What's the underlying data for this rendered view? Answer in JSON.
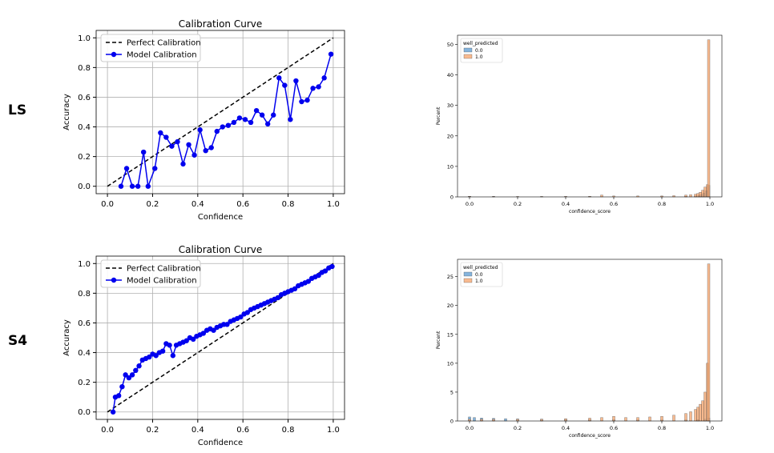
{
  "row_labels": [
    "LS",
    "S4"
  ],
  "chart_data": [
    {
      "type": "line",
      "title": "Calibration Curve",
      "xlabel": "Confidence",
      "ylabel": "Accuracy",
      "xlim": [
        -0.05,
        1.05
      ],
      "ylim": [
        -0.05,
        1.05
      ],
      "xticks": [
        0.0,
        0.2,
        0.4,
        0.6,
        0.8,
        1.0
      ],
      "yticks": [
        0.0,
        0.2,
        0.4,
        0.6,
        0.8,
        1.0
      ],
      "xtick_labels": [
        "0.0",
        "0.2",
        "0.4",
        "0.6",
        "0.8",
        "1.0"
      ],
      "ytick_labels": [
        "0.0",
        "0.2",
        "0.4",
        "0.6",
        "0.8",
        "1.0"
      ],
      "grid": true,
      "legend_position": "top-left",
      "series": [
        {
          "name": "Perfect Calibration",
          "style": "dashed",
          "color": "#000000",
          "x": [
            0,
            1
          ],
          "y": [
            0,
            1
          ]
        },
        {
          "name": "Model Calibration",
          "style": "line-marker",
          "color": "#0000ee",
          "x": [
            0.06,
            0.085,
            0.11,
            0.135,
            0.16,
            0.18,
            0.21,
            0.235,
            0.26,
            0.285,
            0.31,
            0.335,
            0.36,
            0.385,
            0.41,
            0.435,
            0.46,
            0.485,
            0.51,
            0.535,
            0.56,
            0.585,
            0.61,
            0.635,
            0.66,
            0.685,
            0.71,
            0.735,
            0.76,
            0.785,
            0.81,
            0.835,
            0.86,
            0.885,
            0.91,
            0.935,
            0.96,
            0.99
          ],
          "y": [
            0.0,
            0.12,
            0.0,
            0.0,
            0.23,
            0.0,
            0.12,
            0.36,
            0.33,
            0.27,
            0.3,
            0.15,
            0.28,
            0.21,
            0.38,
            0.24,
            0.26,
            0.37,
            0.4,
            0.41,
            0.43,
            0.46,
            0.45,
            0.43,
            0.51,
            0.48,
            0.42,
            0.48,
            0.73,
            0.68,
            0.45,
            0.71,
            0.57,
            0.58,
            0.66,
            0.67,
            0.73,
            0.89
          ]
        }
      ]
    },
    {
      "type": "bar",
      "title": "",
      "xlabel": "confidence_score",
      "ylabel": "Percent",
      "xlim": [
        -0.05,
        1.05
      ],
      "ylim": [
        0,
        53
      ],
      "xticks": [
        0.0,
        0.2,
        0.4,
        0.6,
        0.8,
        1.0
      ],
      "yticks": [
        0,
        10,
        20,
        30,
        40,
        50
      ],
      "xtick_labels": [
        "0.0",
        "0.2",
        "0.4",
        "0.6",
        "0.8",
        "1.0"
      ],
      "ytick_labels": [
        "0",
        "10",
        "20",
        "30",
        "40",
        "50"
      ],
      "grid": false,
      "legend_title": "well_predicted",
      "legend_position": "top-left",
      "series": [
        {
          "name": "0.0",
          "color": "#5b9ad0",
          "x": [
            0.0,
            0.1,
            0.3,
            0.5,
            0.8,
            0.9,
            0.94,
            0.955,
            0.965,
            0.975,
            0.985,
            0.995
          ],
          "y": [
            0.2,
            0.15,
            0.1,
            0.1,
            0.1,
            0.2,
            0.3,
            0.5,
            0.8,
            1.2,
            2.0,
            3.8
          ]
        },
        {
          "name": "1.0",
          "color": "#f5a36a",
          "x": [
            0.0,
            0.1,
            0.2,
            0.3,
            0.4,
            0.5,
            0.55,
            0.6,
            0.7,
            0.8,
            0.85,
            0.9,
            0.92,
            0.94,
            0.95,
            0.96,
            0.97,
            0.98,
            0.99,
            0.995
          ],
          "y": [
            0.2,
            0.15,
            0.15,
            0.15,
            0.2,
            0.2,
            0.6,
            0.3,
            0.3,
            0.3,
            0.4,
            0.6,
            0.7,
            0.9,
            1.1,
            1.5,
            2.2,
            3.2,
            4.0,
            51.5
          ]
        }
      ]
    },
    {
      "type": "line",
      "title": "Calibration Curve",
      "xlabel": "Confidence",
      "ylabel": "Accuracy",
      "xlim": [
        -0.05,
        1.05
      ],
      "ylim": [
        -0.05,
        1.05
      ],
      "xticks": [
        0.0,
        0.2,
        0.4,
        0.6,
        0.8,
        1.0
      ],
      "yticks": [
        0.0,
        0.2,
        0.4,
        0.6,
        0.8,
        1.0
      ],
      "xtick_labels": [
        "0.0",
        "0.2",
        "0.4",
        "0.6",
        "0.8",
        "1.0"
      ],
      "ytick_labels": [
        "0.0",
        "0.2",
        "0.4",
        "0.6",
        "0.8",
        "1.0"
      ],
      "grid": true,
      "legend_position": "top-left",
      "series": [
        {
          "name": "Perfect Calibration",
          "style": "dashed",
          "color": "#000000",
          "x": [
            0,
            1
          ],
          "y": [
            0,
            1
          ]
        },
        {
          "name": "Model Calibration",
          "style": "line-marker",
          "color": "#0000ee",
          "x": [
            0.025,
            0.035,
            0.05,
            0.065,
            0.08,
            0.095,
            0.11,
            0.125,
            0.14,
            0.155,
            0.17,
            0.185,
            0.2,
            0.215,
            0.23,
            0.245,
            0.26,
            0.275,
            0.29,
            0.305,
            0.32,
            0.335,
            0.35,
            0.365,
            0.38,
            0.395,
            0.41,
            0.425,
            0.44,
            0.455,
            0.47,
            0.485,
            0.5,
            0.515,
            0.53,
            0.545,
            0.56,
            0.575,
            0.59,
            0.605,
            0.62,
            0.635,
            0.65,
            0.665,
            0.68,
            0.695,
            0.71,
            0.725,
            0.74,
            0.755,
            0.77,
            0.785,
            0.8,
            0.815,
            0.83,
            0.845,
            0.86,
            0.875,
            0.89,
            0.905,
            0.92,
            0.935,
            0.95,
            0.965,
            0.98,
            0.995
          ],
          "y": [
            0.0,
            0.1,
            0.11,
            0.17,
            0.25,
            0.23,
            0.25,
            0.28,
            0.31,
            0.35,
            0.36,
            0.37,
            0.39,
            0.38,
            0.4,
            0.41,
            0.46,
            0.45,
            0.38,
            0.45,
            0.46,
            0.47,
            0.48,
            0.5,
            0.49,
            0.51,
            0.52,
            0.53,
            0.55,
            0.56,
            0.55,
            0.57,
            0.58,
            0.59,
            0.59,
            0.61,
            0.62,
            0.63,
            0.64,
            0.66,
            0.67,
            0.69,
            0.7,
            0.71,
            0.72,
            0.73,
            0.74,
            0.75,
            0.76,
            0.77,
            0.79,
            0.8,
            0.81,
            0.82,
            0.83,
            0.85,
            0.86,
            0.87,
            0.88,
            0.9,
            0.91,
            0.92,
            0.94,
            0.95,
            0.97,
            0.98
          ]
        }
      ]
    },
    {
      "type": "bar",
      "title": "",
      "xlabel": "confidence_score",
      "ylabel": "Percent",
      "xlim": [
        -0.05,
        1.05
      ],
      "ylim": [
        0,
        28
      ],
      "xticks": [
        0.0,
        0.2,
        0.4,
        0.6,
        0.8,
        1.0
      ],
      "yticks": [
        0,
        5,
        10,
        15,
        20,
        25
      ],
      "xtick_labels": [
        "0.0",
        "0.2",
        "0.4",
        "0.6",
        "0.8",
        "1.0"
      ],
      "ytick_labels": [
        "0",
        "5",
        "10",
        "15",
        "20",
        "25"
      ],
      "grid": false,
      "legend_title": "well_predicted",
      "legend_position": "top-left",
      "series": [
        {
          "name": "0.0",
          "color": "#5b9ad0",
          "x": [
            0.0,
            0.02,
            0.05,
            0.1,
            0.15,
            0.2,
            0.3,
            0.4,
            0.5,
            0.6,
            0.7,
            0.8,
            0.9,
            0.95,
            0.98,
            0.995
          ],
          "y": [
            0.7,
            0.6,
            0.5,
            0.45,
            0.4,
            0.35,
            0.3,
            0.3,
            0.25,
            0.25,
            0.2,
            0.2,
            0.2,
            0.25,
            0.3,
            0.5
          ]
        },
        {
          "name": "1.0",
          "color": "#f5a36a",
          "x": [
            0.0,
            0.05,
            0.1,
            0.2,
            0.3,
            0.4,
            0.5,
            0.55,
            0.6,
            0.65,
            0.7,
            0.75,
            0.8,
            0.85,
            0.9,
            0.92,
            0.94,
            0.95,
            0.96,
            0.97,
            0.98,
            0.99,
            0.995
          ],
          "y": [
            0.3,
            0.3,
            0.3,
            0.3,
            0.3,
            0.4,
            0.5,
            0.6,
            0.8,
            0.6,
            0.6,
            0.7,
            0.8,
            1.0,
            1.3,
            1.6,
            2.0,
            2.4,
            2.9,
            3.5,
            5.0,
            10.0,
            27.2
          ]
        }
      ]
    }
  ]
}
